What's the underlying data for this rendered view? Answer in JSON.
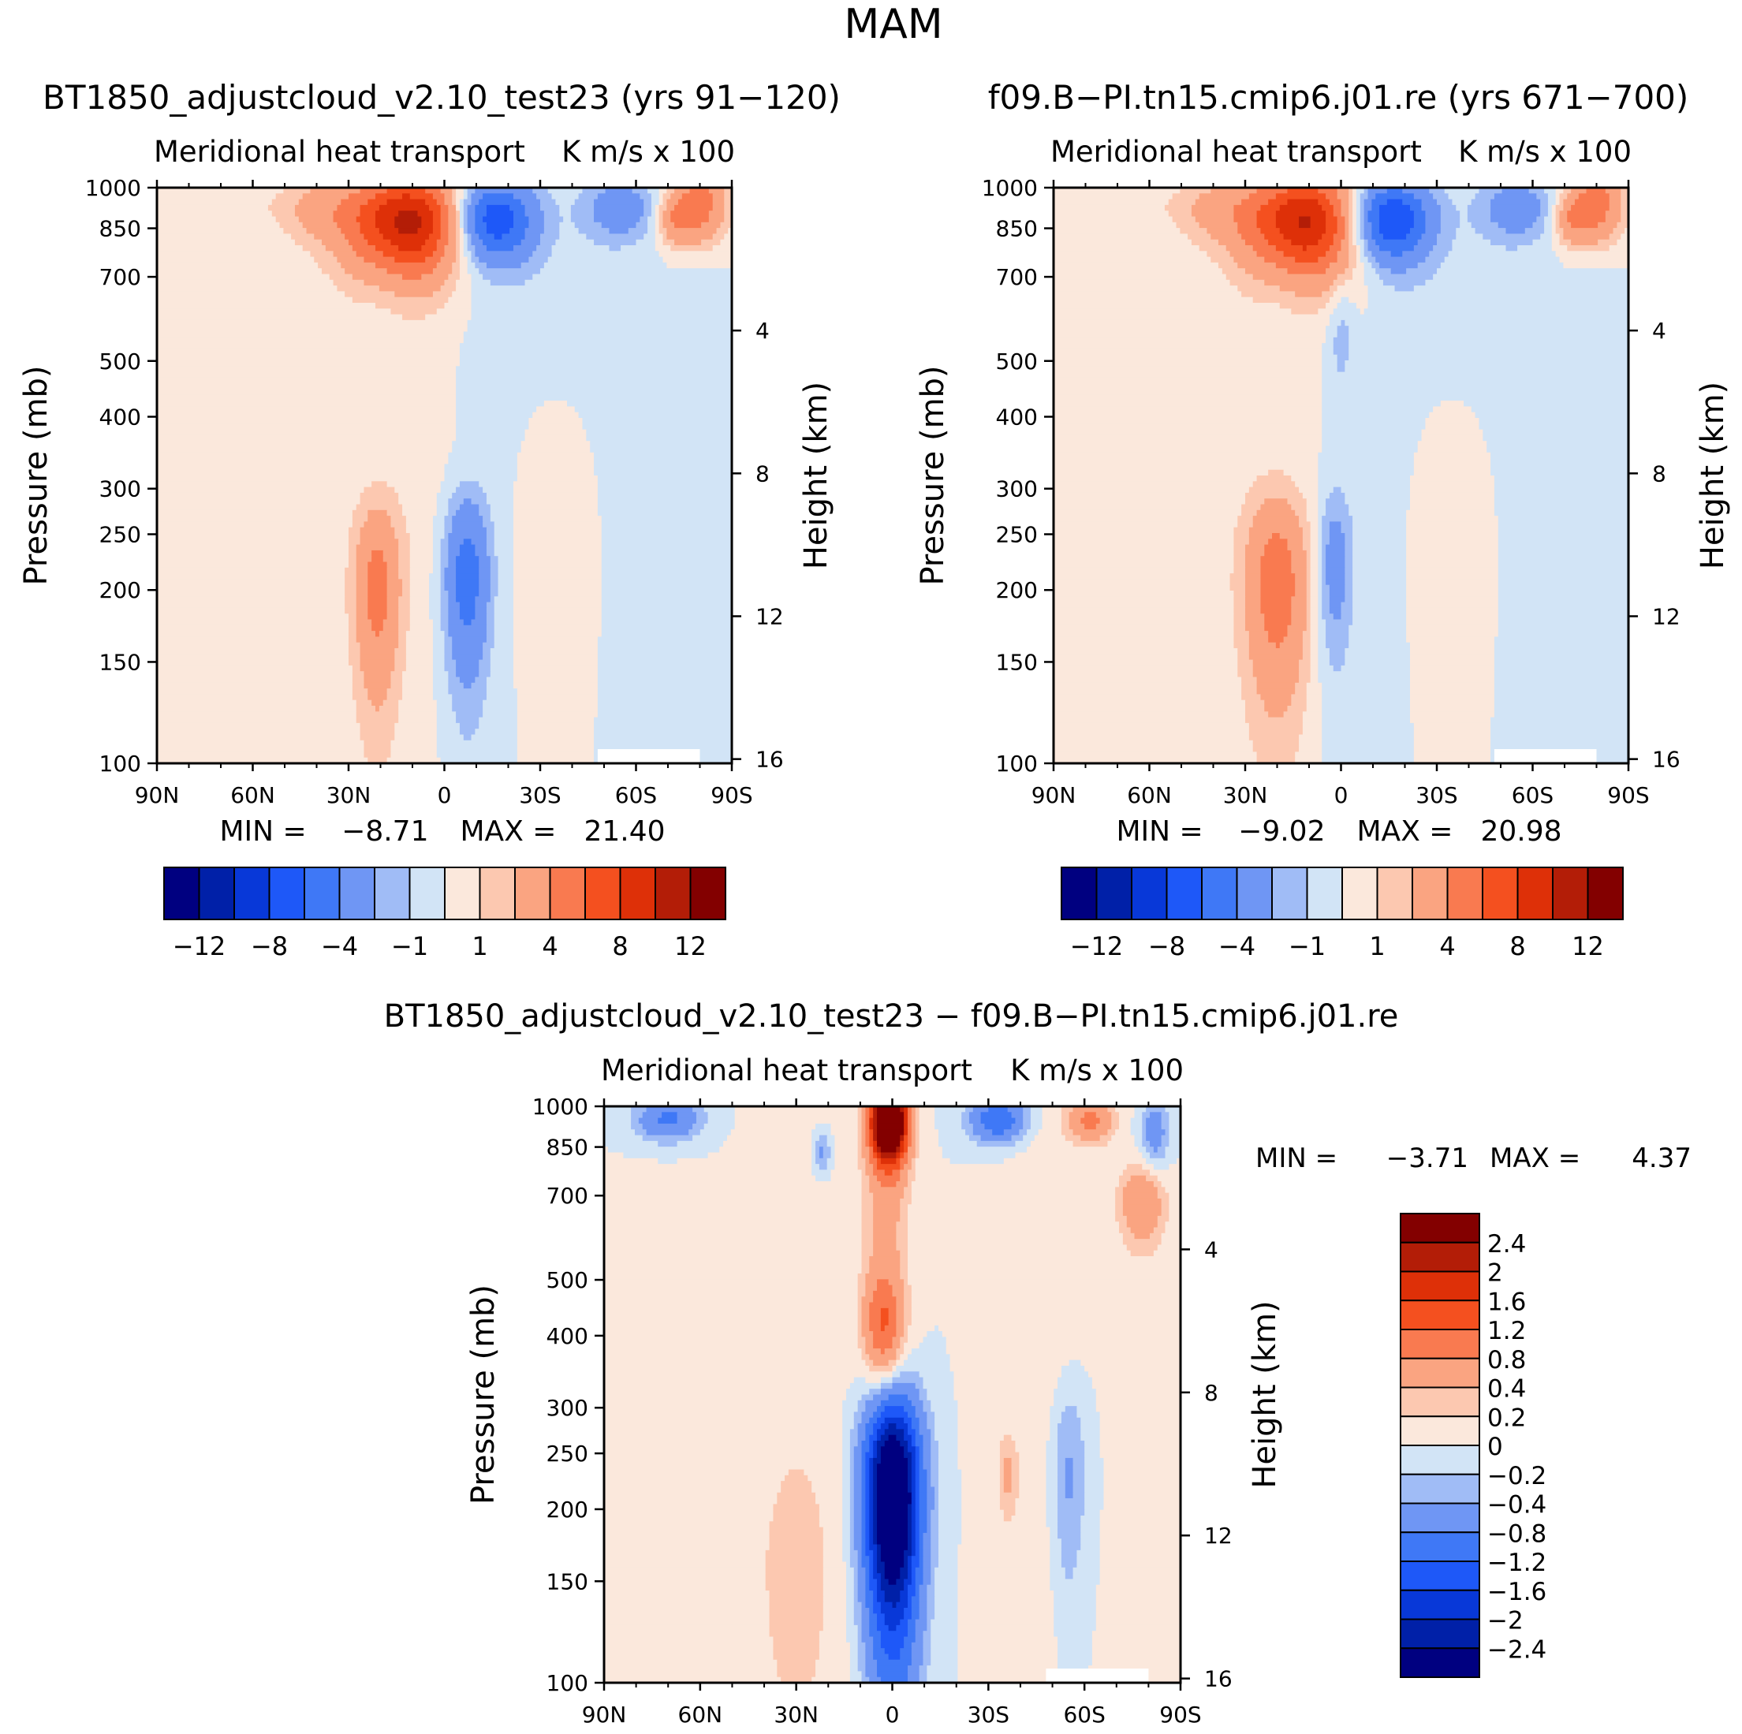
{
  "figure": {
    "title": "MAM"
  },
  "palette": {
    "div16": [
      "#000080",
      "#0020a8",
      "#0838d8",
      "#1e58f8",
      "#3f78f6",
      "#6f96f4",
      "#a0bcf6",
      "#d2e4f6",
      "#fbe8dc",
      "#fcc8b0",
      "#faa481",
      "#f97a50",
      "#f4501f",
      "#de3008",
      "#b31d07",
      "#830000"
    ]
  },
  "chart_data": [
    {
      "id": "top-left",
      "type": "contour",
      "case_title": "BT1850_adjustcloud_v2.10_test23 (yrs 91-120)",
      "left_string": "Meridional heat transport",
      "right_string": "K m/s x 100",
      "xlabel": "",
      "ylabel": "Pressure (mb)",
      "ylabel_right": "Height (km)",
      "xlim": [
        90,
        -90
      ],
      "ylim": [
        1000,
        100
      ],
      "x_ticks": [
        90,
        60,
        30,
        0,
        -30,
        -60,
        -90
      ],
      "x_tick_labels": [
        "90N",
        "60N",
        "30N",
        "0",
        "30S",
        "60S",
        "90S"
      ],
      "y_ticks": [
        100,
        150,
        200,
        250,
        300,
        400,
        500,
        700,
        850,
        1000
      ],
      "y_tick_labels": [
        "100",
        "150",
        "200",
        "250",
        "300",
        "400",
        "500",
        "700",
        "850",
        "1000"
      ],
      "height_ticks_km": [
        4,
        8,
        12,
        16
      ],
      "height_tick_labels": [
        "4",
        "8",
        "12",
        "16"
      ],
      "stats": {
        "min_label": "MIN =",
        "min_value": "-8.71",
        "max_label": "MAX =",
        "max_value": "21.40"
      },
      "contour_levels": [
        -12,
        -10,
        -8,
        -6,
        -4,
        -2,
        -1,
        0,
        1,
        2,
        4,
        6,
        8,
        10,
        12
      ],
      "colorbar_tick_labels": [
        "-12",
        "-8",
        "-4",
        "-1",
        "1",
        "4",
        "8",
        "12"
      ],
      "colorbar_tick_levels": [
        -12,
        -8,
        -4,
        -1,
        1,
        4,
        8,
        12
      ],
      "features": [
        {
          "lat": 12,
          "p": 870,
          "sx": 13,
          "sy": 125,
          "v": 11
        },
        {
          "lat": 40,
          "p": 920,
          "sx": 8,
          "sy": 80,
          "v": 2
        },
        {
          "lat": 60,
          "p": 940,
          "sx": 8,
          "sy": 90,
          "v": 0.6
        },
        {
          "lat": 58,
          "p": 300,
          "sx": 32,
          "sy": 360,
          "v": 0.5
        },
        {
          "lat": 8,
          "p": 330,
          "sx": 7,
          "sy": 160,
          "v": 0.5
        },
        {
          "lat": -35,
          "p": 260,
          "sx": 9,
          "sy": 140,
          "v": 1.2
        },
        {
          "lat": -80,
          "p": 940,
          "sx": 6,
          "sy": 110,
          "v": 5
        },
        {
          "lat": -72,
          "p": 880,
          "sx": 4,
          "sy": 60,
          "v": 3
        },
        {
          "lat": 21,
          "p": 200,
          "sx": 5,
          "sy": 55,
          "v": 4.5
        },
        {
          "lat": -15,
          "p": 880,
          "sx": 9,
          "sy": 100,
          "v": -8
        },
        {
          "lat": 19,
          "p": 780,
          "sx": 5,
          "sy": 130,
          "v": -0.9
        },
        {
          "lat": -55,
          "p": 920,
          "sx": 8,
          "sy": 80,
          "v": -3
        },
        {
          "lat": -7,
          "p": 210,
          "sx": 5,
          "sy": 55,
          "v": -5
        },
        {
          "lat": -35,
          "p": 520,
          "sx": 20,
          "sy": 380,
          "v": -0.6
        },
        {
          "lat": -80,
          "p": 720,
          "sx": 6,
          "sy": 80,
          "v": -0.8
        }
      ]
    },
    {
      "id": "top-right",
      "type": "contour",
      "case_title": "f09.B-PI.tn15.cmip6.j01.re (yrs 671-700)",
      "left_string": "Meridional heat transport",
      "right_string": "K m/s x 100",
      "xlabel": "",
      "ylabel": "Pressure (mb)",
      "ylabel_right": "Height (km)",
      "xlim": [
        90,
        -90
      ],
      "ylim": [
        1000,
        100
      ],
      "x_ticks": [
        90,
        60,
        30,
        0,
        -30,
        -60,
        -90
      ],
      "x_tick_labels": [
        "90N",
        "60N",
        "30N",
        "0",
        "30S",
        "60S",
        "90S"
      ],
      "y_ticks": [
        100,
        150,
        200,
        250,
        300,
        400,
        500,
        700,
        850,
        1000
      ],
      "y_tick_labels": [
        "100",
        "150",
        "200",
        "250",
        "300",
        "400",
        "500",
        "700",
        "850",
        "1000"
      ],
      "height_ticks_km": [
        4,
        8,
        12,
        16
      ],
      "height_tick_labels": [
        "4",
        "8",
        "12",
        "16"
      ],
      "stats": {
        "min_label": "MIN =",
        "min_value": "-9.02",
        "max_label": "MAX =",
        "max_value": "20.98"
      },
      "contour_levels": [
        -12,
        -10,
        -8,
        -6,
        -4,
        -2,
        -1,
        0,
        1,
        2,
        4,
        6,
        8,
        10,
        12
      ],
      "colorbar_tick_labels": [
        "-12",
        "-8",
        "-4",
        "-1",
        "1",
        "4",
        "8",
        "12"
      ],
      "colorbar_tick_levels": [
        -12,
        -8,
        -4,
        -1,
        1,
        4,
        8,
        12
      ],
      "features": [
        {
          "lat": 12,
          "p": 870,
          "sx": 13,
          "sy": 125,
          "v": 10.5
        },
        {
          "lat": 40,
          "p": 920,
          "sx": 8,
          "sy": 80,
          "v": 2
        },
        {
          "lat": 60,
          "p": 940,
          "sx": 8,
          "sy": 90,
          "v": 0.6
        },
        {
          "lat": 58,
          "p": 300,
          "sx": 32,
          "sy": 360,
          "v": 0.5
        },
        {
          "lat": -35,
          "p": 260,
          "sx": 9,
          "sy": 140,
          "v": 1.2
        },
        {
          "lat": -80,
          "p": 940,
          "sx": 6,
          "sy": 110,
          "v": 5
        },
        {
          "lat": -72,
          "p": 880,
          "sx": 4,
          "sy": 60,
          "v": 3
        },
        {
          "lat": 20,
          "p": 205,
          "sx": 7,
          "sy": 60,
          "v": 5
        },
        {
          "lat": -15,
          "p": 880,
          "sx": 9,
          "sy": 100,
          "v": -8.5
        },
        {
          "lat": 19,
          "p": 780,
          "sx": 5,
          "sy": 130,
          "v": -0.9
        },
        {
          "lat": -55,
          "p": 920,
          "sx": 8,
          "sy": 80,
          "v": -3
        },
        {
          "lat": 2,
          "p": 220,
          "sx": 4,
          "sy": 55,
          "v": -3
        },
        {
          "lat": 0,
          "p": 560,
          "sx": 3,
          "sy": 90,
          "v": -1.5
        },
        {
          "lat": -35,
          "p": 520,
          "sx": 20,
          "sy": 380,
          "v": -0.6
        },
        {
          "lat": -80,
          "p": 720,
          "sx": 6,
          "sy": 80,
          "v": -0.8
        }
      ]
    },
    {
      "id": "bottom-diff",
      "type": "contour",
      "case_title": "BT1850_adjustcloud_v2.10_test23 - f09.B-PI.tn15.cmip6.j01.re",
      "left_string": "Meridional heat transport",
      "right_string": "K m/s x 100",
      "xlabel": "",
      "ylabel": "Pressure (mb)",
      "ylabel_right": "Height (km)",
      "xlim": [
        90,
        -90
      ],
      "ylim": [
        1000,
        100
      ],
      "x_ticks": [
        90,
        60,
        30,
        0,
        -30,
        -60,
        -90
      ],
      "x_tick_labels": [
        "90N",
        "60N",
        "30N",
        "0",
        "30S",
        "60S",
        "90S"
      ],
      "y_ticks": [
        100,
        150,
        200,
        250,
        300,
        400,
        500,
        700,
        850,
        1000
      ],
      "y_tick_labels": [
        "100",
        "150",
        "200",
        "250",
        "300",
        "400",
        "500",
        "700",
        "850",
        "1000"
      ],
      "height_ticks_km": [
        4,
        8,
        12,
        16
      ],
      "height_tick_labels": [
        "4",
        "8",
        "12",
        "16"
      ],
      "stats": {
        "min_label": "MIN =",
        "min_value": "-3.71",
        "max_label": "MAX =",
        "max_value": "4.37"
      },
      "contour_levels": [
        -2.4,
        -2,
        -1.6,
        -1.2,
        -0.8,
        -0.4,
        -0.2,
        0,
        0.2,
        0.4,
        0.8,
        1.2,
        1.6,
        2,
        2.4
      ],
      "colorbar_tick_labels": [
        "2.4",
        "2",
        "1.6",
        "1.2",
        "0.8",
        "0.4",
        "0.2",
        "0",
        "-0.2",
        "-0.4",
        "-0.8",
        "-1.2",
        "-1.6",
        "-2",
        "-2.4"
      ],
      "colorbar_tick_levels": [
        2.4,
        2,
        1.6,
        1.2,
        0.8,
        0.4,
        0.2,
        0,
        -0.2,
        -0.4,
        -0.8,
        -1.2,
        -1.6,
        -2,
        -2.4
      ],
      "features": [
        {
          "lat": 1,
          "p": 940,
          "sx": 4,
          "sy": 100,
          "v": 4
        },
        {
          "lat": 2,
          "p": 600,
          "sx": 5,
          "sy": 260,
          "v": 0.5
        },
        {
          "lat": 3,
          "p": 420,
          "sx": 4,
          "sy": 60,
          "v": 0.9
        },
        {
          "lat": 30,
          "p": 450,
          "sx": 10,
          "sy": 400,
          "v": 0.15
        },
        {
          "lat": -45,
          "p": 450,
          "sx": 10,
          "sy": 400,
          "v": 0.15
        },
        {
          "lat": -62,
          "p": 950,
          "sx": 5,
          "sy": 60,
          "v": 0.9
        },
        {
          "lat": -78,
          "p": 680,
          "sx": 5,
          "sy": 80,
          "v": 0.8
        },
        {
          "lat": -36,
          "p": 230,
          "sx": 2,
          "sy": 25,
          "v": 0.4
        },
        {
          "lat": 0,
          "p": 210,
          "sx": 6,
          "sy": 70,
          "v": -3.7
        },
        {
          "lat": 70,
          "p": 950,
          "sx": 7,
          "sy": 55,
          "v": -0.9
        },
        {
          "lat": -33,
          "p": 950,
          "sx": 6,
          "sy": 60,
          "v": -1.2
        },
        {
          "lat": -55,
          "p": 230,
          "sx": 4,
          "sy": 70,
          "v": -0.5
        },
        {
          "lat": 22,
          "p": 830,
          "sx": 2,
          "sy": 50,
          "v": -0.5
        },
        {
          "lat": -82,
          "p": 900,
          "sx": 3,
          "sy": 90,
          "v": -0.6
        },
        {
          "lat": 30,
          "p": 150,
          "sx": 15,
          "sy": 70,
          "v": 0.15
        },
        {
          "lat": 70,
          "p": 300,
          "sx": 10,
          "sy": 300,
          "v": 0.1
        }
      ]
    }
  ]
}
